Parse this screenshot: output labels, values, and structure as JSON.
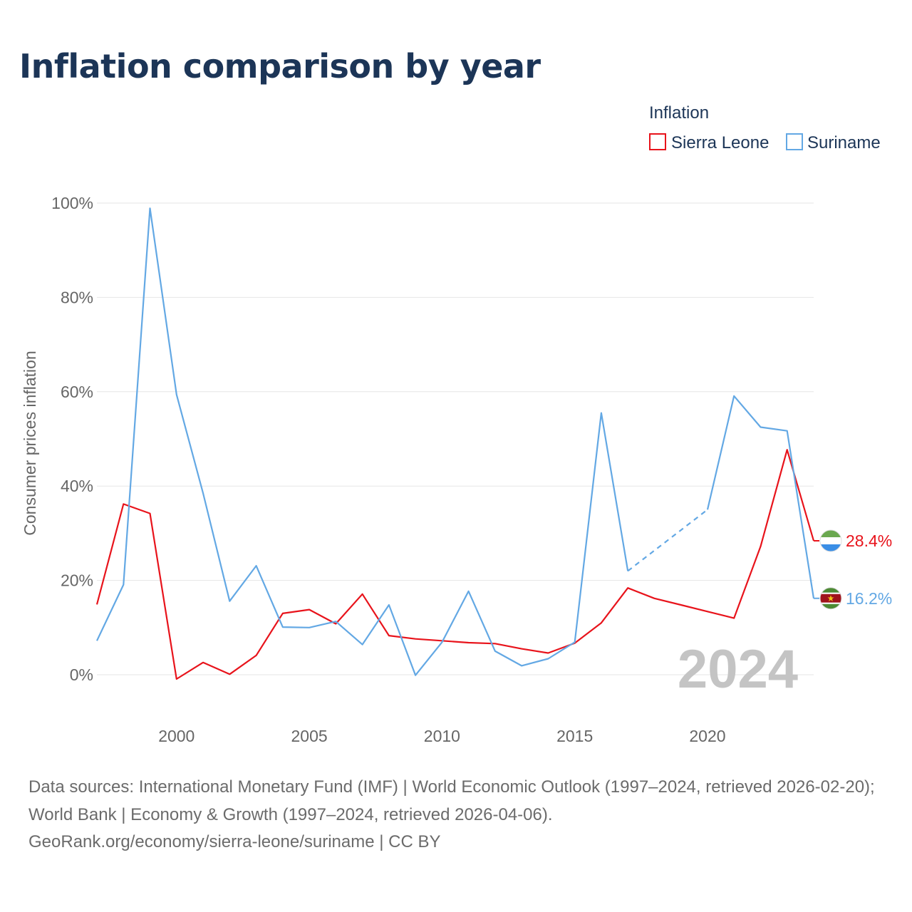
{
  "title": "Inflation comparison by year",
  "footer": {
    "sources": "Data sources: International Monetary Fund (IMF) | World Economic Outlook (1997–2024, retrieved 2026-02-20); World Bank | Economy & Growth (1997–2024, retrieved 2026-04-06).",
    "credit": "GeoRank.org/economy/sierra-leone/suriname | CC BY"
  },
  "chart_data": {
    "type": "line",
    "title": "Inflation comparison by year",
    "ylabel": "Consumer prices inflation",
    "xlabel": "",
    "ylim": [
      -8,
      100
    ],
    "xlim": [
      1997,
      2024
    ],
    "x_ticks": [
      2000,
      2005,
      2010,
      2015,
      2020
    ],
    "y_ticks": [
      0,
      20,
      40,
      60,
      80,
      100
    ],
    "y_tick_labels": [
      "0%",
      "20%",
      "40%",
      "60%",
      "80%",
      "100%"
    ],
    "grid": true,
    "legend_title": "Inflation",
    "legend_position": "top-right",
    "year_label": "2024",
    "x": [
      1997,
      1998,
      1999,
      2000,
      2001,
      2002,
      2003,
      2004,
      2005,
      2006,
      2007,
      2008,
      2009,
      2010,
      2011,
      2012,
      2013,
      2014,
      2015,
      2016,
      2017,
      2018,
      2019,
      2020,
      2021,
      2022,
      2023,
      2024
    ],
    "series": [
      {
        "name": "Sierra Leone",
        "color": "#e8131b",
        "values": [
          14.9,
          36.2,
          34.2,
          -0.9,
          2.6,
          0.1,
          4.1,
          13.0,
          13.8,
          10.8,
          17.1,
          8.3,
          7.6,
          7.2,
          6.8,
          6.6,
          5.5,
          4.6,
          6.7,
          11.0,
          18.4,
          16.2,
          14.8,
          13.4,
          12.0,
          27.2,
          47.7,
          28.4
        ],
        "dashed_segments": [],
        "end_label": "28.4%",
        "flag": "sierra-leone-flag-icon"
      },
      {
        "name": "Suriname",
        "color": "#63a8e4",
        "values": [
          7.2,
          19.1,
          98.9,
          59.4,
          38.5,
          15.6,
          23.1,
          10.1,
          10.0,
          11.3,
          6.4,
          14.8,
          -0.1,
          6.9,
          17.7,
          5.0,
          1.9,
          3.4,
          6.9,
          55.5,
          22.0,
          null,
          null,
          35.0,
          59.1,
          52.5,
          51.7,
          16.2
        ],
        "dashed_segments": [
          [
            2017,
            2020
          ]
        ],
        "end_label": "16.2%",
        "flag": "suriname-flag-icon"
      }
    ]
  }
}
